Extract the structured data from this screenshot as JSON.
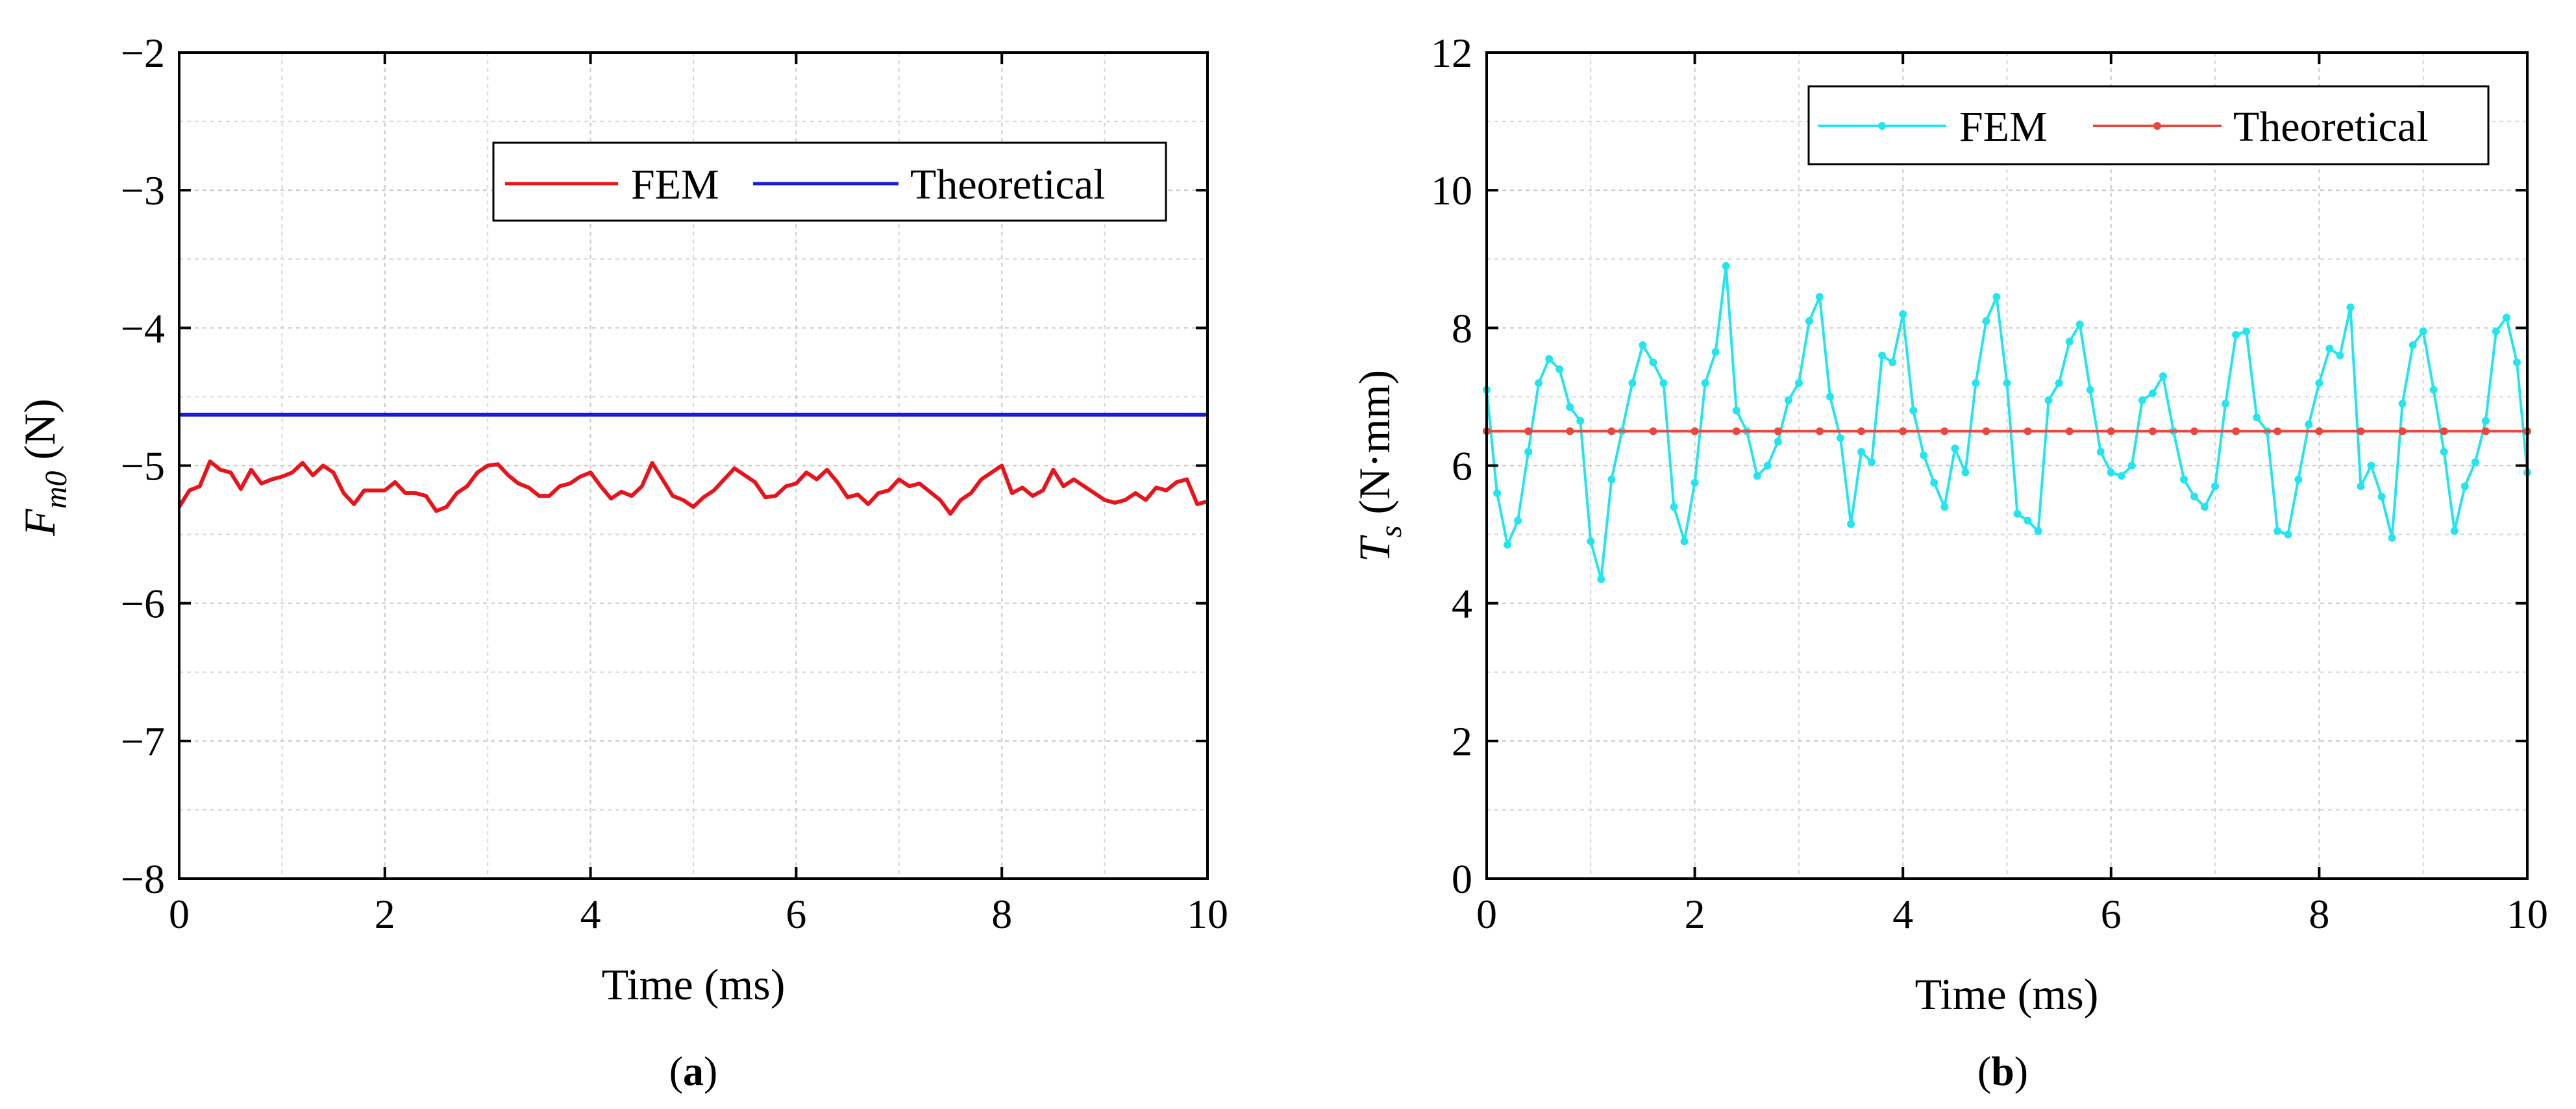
{
  "chart_data": [
    {
      "type": "line",
      "panel": "a",
      "caption_open": "(",
      "caption_letter": "a",
      "caption_close": ")",
      "xlabel": "Time (ms)",
      "ylabel_main": "F",
      "ylabel_sub": "m0",
      "ylabel_unit": " (N)",
      "xlim": [
        0,
        10
      ],
      "ylim": [
        -8,
        -2
      ],
      "xticks": [
        0,
        2,
        4,
        6,
        8,
        10
      ],
      "xtick_labels": [
        "0",
        "2",
        "4",
        "6",
        "8",
        "10"
      ],
      "yticks": [
        -2,
        -3,
        -4,
        -5,
        -6,
        -7,
        -8
      ],
      "ytick_labels": [
        "−2",
        "−3",
        "−4",
        "−5",
        "−6",
        "−7",
        "−8"
      ],
      "grid": true,
      "legend_position": "top-right",
      "series": [
        {
          "name": "FEM",
          "color": "#e8141c",
          "markers": false,
          "x_start": 0,
          "x_step": 0.1,
          "values": [
            -5.3,
            -5.18,
            -5.15,
            -4.97,
            -5.03,
            -5.05,
            -5.17,
            -5.03,
            -5.13,
            -5.1,
            -5.08,
            -5.05,
            -4.98,
            -5.07,
            -5.0,
            -5.05,
            -5.2,
            -5.28,
            -5.18,
            -5.18,
            -5.18,
            -5.12,
            -5.2,
            -5.2,
            -5.22,
            -5.33,
            -5.3,
            -5.2,
            -5.15,
            -5.05,
            -5.0,
            -4.99,
            -5.07,
            -5.13,
            -5.16,
            -5.22,
            -5.22,
            -5.15,
            -5.13,
            -5.08,
            -5.05,
            -5.15,
            -5.24,
            -5.19,
            -5.22,
            -5.15,
            -4.98,
            -5.1,
            -5.22,
            -5.25,
            -5.3,
            -5.23,
            -5.18,
            -5.1,
            -5.02,
            -5.07,
            -5.12,
            -5.23,
            -5.22,
            -5.15,
            -5.13,
            -5.05,
            -5.1,
            -5.03,
            -5.12,
            -5.23,
            -5.21,
            -5.28,
            -5.2,
            -5.18,
            -5.1,
            -5.15,
            -5.13,
            -5.19,
            -5.25,
            -5.35,
            -5.25,
            -5.2,
            -5.1,
            -5.05,
            -5.0,
            -5.2,
            -5.16,
            -5.22,
            -5.18,
            -5.03,
            -5.15,
            -5.1,
            -5.15,
            -5.2,
            -5.25,
            -5.27,
            -5.25,
            -5.2,
            -5.25,
            -5.16,
            -5.18,
            -5.12,
            -5.1,
            -5.28,
            -5.26
          ]
        },
        {
          "name": "Theoretical",
          "color": "#1a1adb",
          "markers": false,
          "x": [
            0,
            10
          ],
          "values": [
            -4.63,
            -4.63
          ]
        }
      ]
    },
    {
      "type": "line",
      "panel": "b",
      "caption_open": "(",
      "caption_letter": "b",
      "caption_close": ")",
      "xlabel": "Time (ms)",
      "ylabel_main": "T",
      "ylabel_sub": "s",
      "ylabel_unit": " (N·mm)",
      "xlim": [
        0,
        10
      ],
      "ylim": [
        0,
        12
      ],
      "xticks": [
        0,
        2,
        4,
        6,
        8,
        10
      ],
      "xtick_labels": [
        "0",
        "2",
        "4",
        "6",
        "8",
        "10"
      ],
      "yticks": [
        0,
        2,
        4,
        6,
        8,
        10,
        12
      ],
      "ytick_labels": [
        "0",
        "2",
        "4",
        "6",
        "8",
        "10",
        "12"
      ],
      "grid": true,
      "legend_position": "top-right",
      "series": [
        {
          "name": "FEM",
          "color": "#22e5ee",
          "markers": true,
          "x_start": 0,
          "x_step": 0.1,
          "values": [
            7.1,
            5.6,
            4.85,
            5.2,
            6.2,
            7.2,
            7.55,
            7.4,
            6.85,
            6.65,
            4.9,
            4.35,
            5.8,
            6.5,
            7.2,
            7.75,
            7.5,
            7.2,
            5.4,
            4.9,
            5.75,
            7.2,
            7.65,
            8.9,
            6.8,
            6.5,
            5.85,
            6.0,
            6.35,
            6.95,
            7.2,
            8.1,
            8.45,
            7.0,
            6.4,
            5.15,
            6.2,
            6.05,
            7.6,
            7.5,
            8.2,
            6.8,
            6.15,
            5.75,
            5.4,
            6.25,
            5.9,
            7.2,
            8.1,
            8.45,
            7.2,
            5.3,
            5.2,
            5.05,
            6.95,
            7.2,
            7.8,
            8.05,
            7.1,
            6.2,
            5.9,
            5.85,
            6.0,
            6.95,
            7.05,
            7.3,
            6.5,
            5.8,
            5.55,
            5.4,
            5.7,
            6.9,
            7.9,
            7.95,
            6.7,
            6.5,
            5.05,
            5.0,
            5.8,
            6.6,
            7.2,
            7.7,
            7.6,
            8.3,
            5.7,
            6.0,
            5.55,
            4.95,
            6.9,
            7.75,
            7.95,
            7.1,
            6.2,
            5.05,
            5.7,
            6.05,
            6.65,
            7.95,
            8.15,
            7.5,
            5.9
          ]
        },
        {
          "name": "Theoretical",
          "color": "#e8473e",
          "markers": true,
          "x_start": 0,
          "x_step": 0.4,
          "values": [
            6.5,
            6.5,
            6.5,
            6.5,
            6.5,
            6.5,
            6.5,
            6.5,
            6.5,
            6.5,
            6.5,
            6.5,
            6.5,
            6.5,
            6.5,
            6.5,
            6.5,
            6.5,
            6.5,
            6.5,
            6.5,
            6.5,
            6.5,
            6.5,
            6.5,
            6.5
          ]
        }
      ]
    }
  ]
}
